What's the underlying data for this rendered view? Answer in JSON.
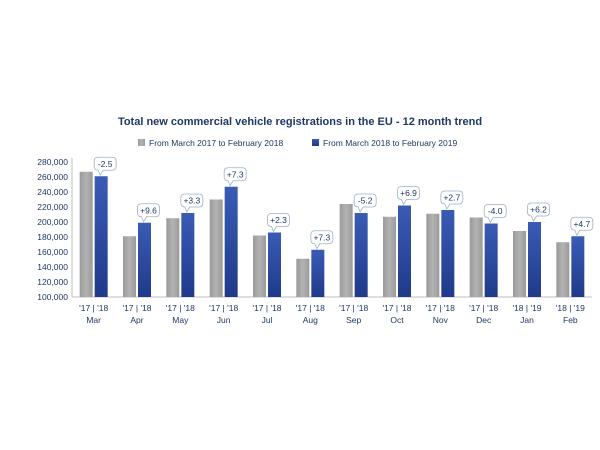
{
  "chart_data": {
    "type": "bar",
    "title": "Total new commercial vehicle registrations in the EU - 12 month trend",
    "categories": [
      "Mar",
      "Apr",
      "May",
      "Jun",
      "Jul",
      "Aug",
      "Sep",
      "Oct",
      "Nov",
      "Dec",
      "Jan",
      "Feb"
    ],
    "year_labels": [
      "'17 | '18",
      "'17 | '18",
      "'17 | '18",
      "'17 | '18",
      "'17 | '18",
      "'17 | '18",
      "'17 | '18",
      "'17 | '18",
      "'17 | '18",
      "'17 | '18",
      "'18 | '19",
      "'18 | '19"
    ],
    "series": [
      {
        "name": "From March 2017 to February 2018",
        "color": "#a6a6a6",
        "values": [
          267000,
          181000,
          205000,
          230000,
          182000,
          151000,
          224000,
          207000,
          211000,
          206000,
          188000,
          173000
        ]
      },
      {
        "name": "From March 2018 to February 2019",
        "color": "#2f4b9c",
        "values": [
          261000,
          199000,
          212000,
          247000,
          186000,
          163000,
          212000,
          222000,
          216000,
          198000,
          200000,
          181000
        ]
      }
    ],
    "annotations": [
      "-2.5",
      "+9.6",
      "+3.3",
      "+7.3",
      "+2.3",
      "+7.3",
      "-5.2",
      "+6.9",
      "+2.7",
      "-4.0",
      "+6.2",
      "+4.7"
    ],
    "y_tick_labels": [
      "100,000",
      "120,000",
      "140,000",
      "160,000",
      "180,000",
      "200,000",
      "220,000",
      "240,000",
      "260,000",
      "280,000"
    ],
    "ylim": [
      100000,
      280000
    ],
    "xlabel": "",
    "ylabel": "",
    "legend_position": "top-center",
    "grid": false
  }
}
